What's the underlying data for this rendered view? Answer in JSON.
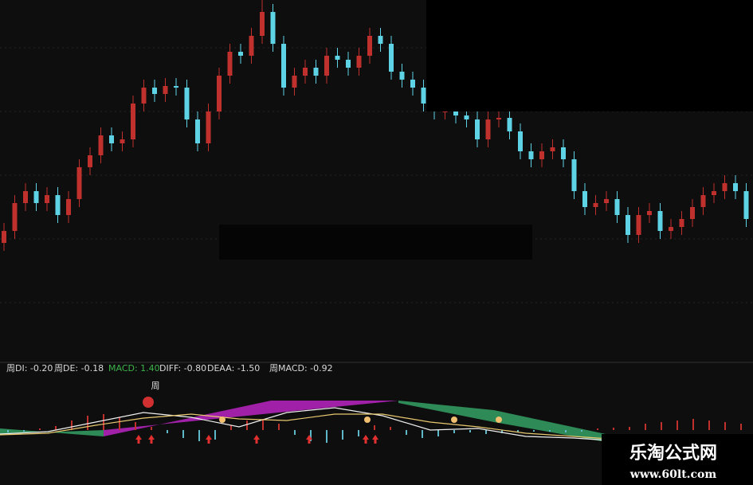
{
  "chart_data": [
    {
      "type": "candlestick",
      "open": [
        150,
        165,
        200,
        215,
        200,
        210,
        185,
        205,
        245,
        260,
        285,
        275,
        280,
        325,
        345,
        337,
        347,
        345,
        305,
        275,
        315,
        360,
        390,
        385,
        410,
        440,
        400,
        345,
        360,
        370,
        360,
        385,
        380,
        370,
        385,
        410,
        400,
        365,
        355,
        345,
        325,
        315,
        315,
        310,
        305,
        280,
        305,
        307,
        290,
        265,
        255,
        265,
        270,
        255,
        215,
        195,
        200,
        205,
        185,
        160,
        185,
        190,
        165,
        170,
        180,
        195,
        210,
        215,
        225,
        215
      ],
      "high": [
        175,
        210,
        225,
        225,
        220,
        220,
        215,
        255,
        270,
        295,
        295,
        290,
        335,
        355,
        355,
        357,
        357,
        355,
        315,
        325,
        370,
        400,
        400,
        420,
        455,
        450,
        410,
        370,
        380,
        380,
        395,
        395,
        390,
        395,
        420,
        420,
        410,
        375,
        365,
        355,
        335,
        325,
        325,
        320,
        315,
        315,
        317,
        317,
        300,
        275,
        275,
        280,
        280,
        265,
        225,
        210,
        215,
        215,
        195,
        195,
        200,
        200,
        180,
        190,
        205,
        220,
        225,
        235,
        235,
        225
      ],
      "low": [
        140,
        155,
        190,
        190,
        190,
        175,
        175,
        195,
        235,
        250,
        265,
        265,
        270,
        315,
        327,
        327,
        335,
        295,
        265,
        265,
        305,
        350,
        375,
        375,
        400,
        390,
        335,
        335,
        350,
        350,
        350,
        370,
        360,
        360,
        375,
        390,
        355,
        345,
        335,
        315,
        305,
        305,
        300,
        295,
        270,
        270,
        295,
        280,
        255,
        245,
        245,
        255,
        245,
        205,
        185,
        185,
        190,
        175,
        150,
        150,
        175,
        155,
        155,
        160,
        170,
        185,
        200,
        205,
        205,
        170
      ],
      "close": [
        165,
        200,
        215,
        200,
        210,
        185,
        205,
        245,
        260,
        285,
        275,
        280,
        325,
        345,
        337,
        347,
        345,
        305,
        275,
        315,
        360,
        390,
        385,
        410,
        440,
        400,
        345,
        360,
        370,
        360,
        385,
        380,
        370,
        385,
        410,
        400,
        365,
        355,
        345,
        325,
        315,
        315,
        310,
        305,
        280,
        305,
        307,
        290,
        265,
        255,
        265,
        270,
        255,
        215,
        195,
        200,
        205,
        185,
        160,
        185,
        190,
        165,
        170,
        180,
        195,
        210,
        215,
        225,
        215,
        180
      ],
      "up_color": "#c0302c",
      "down_color": "#5fd3e6",
      "ylim": [
        0,
        455
      ]
    },
    {
      "type": "macd",
      "annotations": [
        "周DI: -0.20",
        "周DE: -0.18",
        "MACD: 1.40",
        "DIFF: -0.80",
        "DEAA: -1.50",
        "周MACD: -0.92"
      ],
      "annotation_colors": [
        "#d8d8d8",
        "#d8d8d8",
        "#3cb44b",
        "#d8d8d8",
        "#d8d8d8",
        "#d8d8d8"
      ],
      "marker_label": "周",
      "values": [
        -3,
        -2,
        2,
        5,
        12,
        18,
        20,
        16,
        10,
        4,
        -4,
        -10,
        -14,
        -12,
        6,
        12,
        14,
        8,
        -6,
        -14,
        -16,
        -12,
        -8,
        6,
        4,
        -6,
        -10,
        -8,
        -4,
        -3,
        -5,
        -4,
        -3,
        -2,
        -2,
        -3,
        -2,
        2,
        3,
        4,
        8,
        10,
        12,
        14,
        12,
        10,
        8
      ],
      "up_color": "#c0302c",
      "down_color": "#5fb8c8",
      "series": [
        {
          "color": "#f0f0f0",
          "values": [
            -5,
            -2,
            10,
            22,
            16,
            4,
            22,
            28,
            18,
            0,
            2,
            -8,
            -10,
            -14,
            -22,
            -28
          ]
        },
        {
          "color": "#e8c870",
          "values": [
            -6,
            -4,
            6,
            15,
            20,
            14,
            12,
            20,
            20,
            10,
            4,
            -4,
            -8,
            -12,
            -18,
            -24
          ]
        }
      ],
      "ylim": [
        -35,
        35
      ]
    }
  ],
  "watermark": {
    "title": "乐淘公式网",
    "url": "www.60lt.com"
  }
}
